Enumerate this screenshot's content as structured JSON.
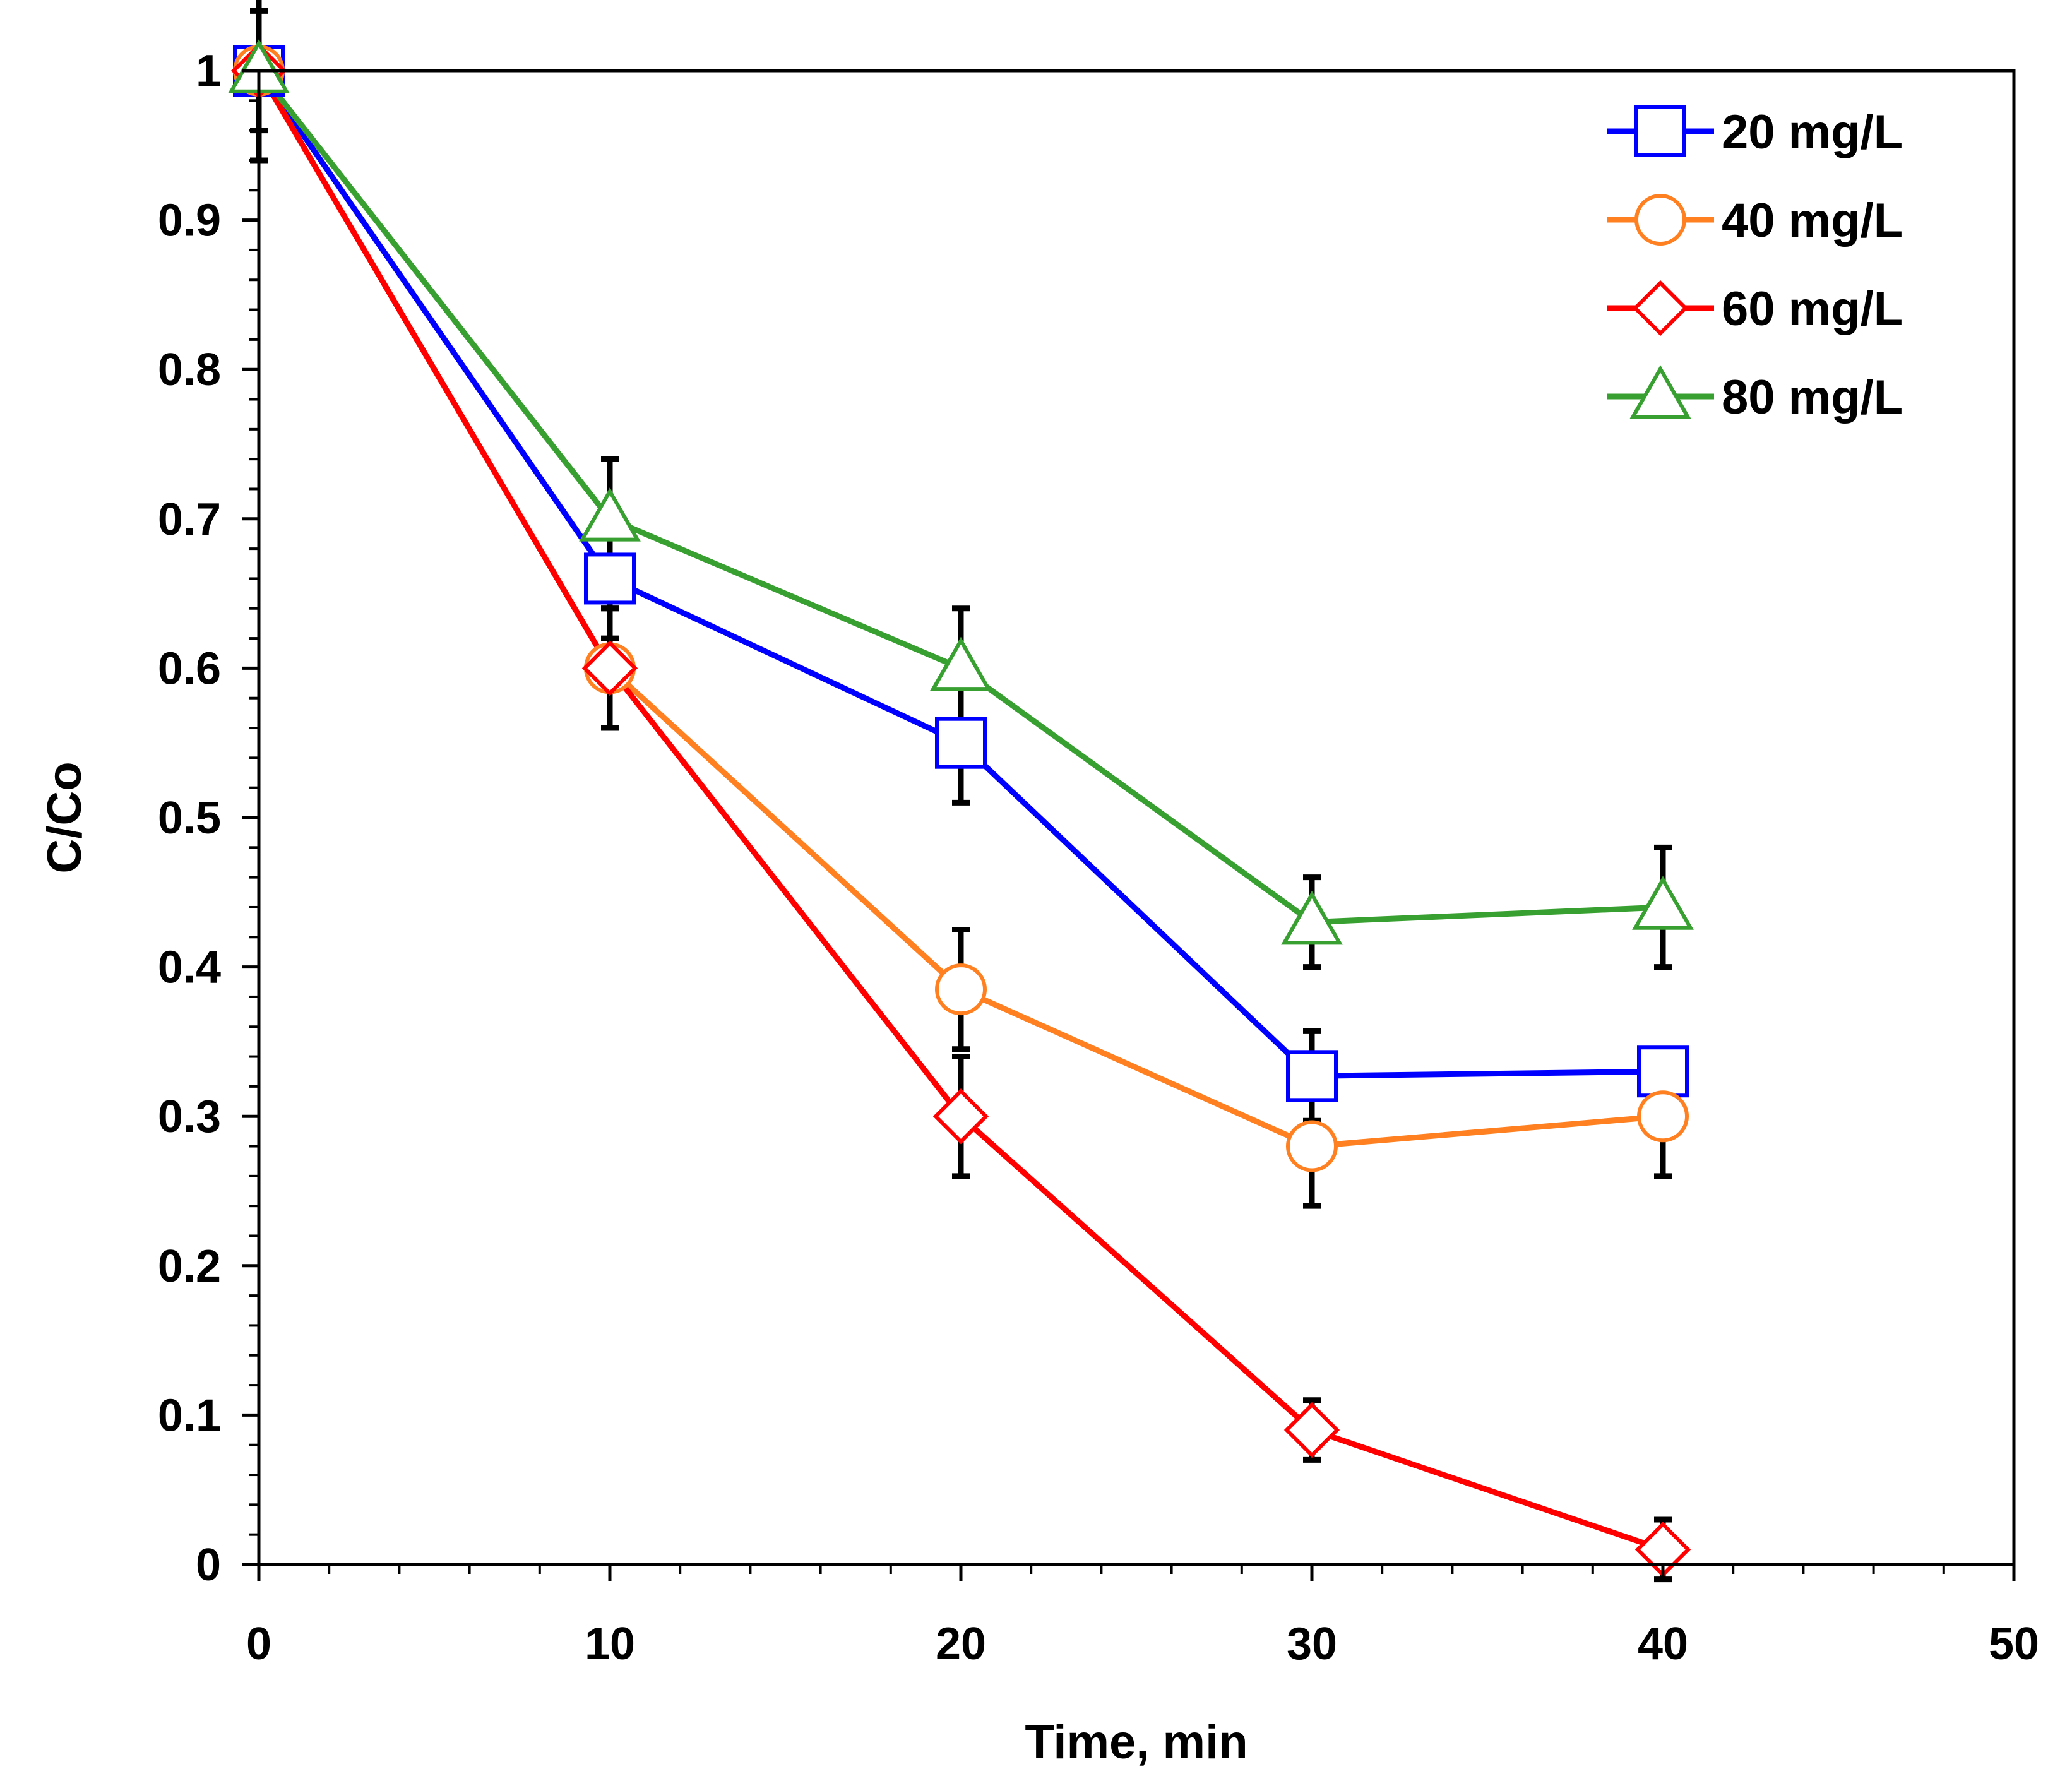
{
  "chart_data": {
    "type": "line",
    "title": "",
    "xlabel": "Time, min",
    "ylabel": "C/Co",
    "xlim": [
      0,
      50
    ],
    "ylim": [
      0,
      1
    ],
    "xticks": [
      "0",
      "10",
      "20",
      "30",
      "40",
      "50"
    ],
    "yticks": [
      "0",
      "0.1",
      "0.2",
      "0.3",
      "0.4",
      "0.5",
      "0.6",
      "0.7",
      "0.8",
      "0.9",
      "1"
    ],
    "x_tick_values": [
      0,
      10,
      20,
      30,
      40,
      50
    ],
    "y_tick_values": [
      0,
      0.1,
      0.2,
      0.3,
      0.4,
      0.5,
      0.6,
      0.7,
      0.8,
      0.9,
      1
    ],
    "x_minor_step": 2,
    "y_minor_step": 0.02,
    "legend_position": "top-right",
    "series": [
      {
        "name": "20 mg/L",
        "color": "#0000ff",
        "marker": "square",
        "x": [
          0,
          10,
          20,
          30,
          40
        ],
        "y": [
          1.0,
          0.66,
          0.55,
          0.327,
          0.33
        ],
        "error": [
          0.06,
          0.04,
          0.04,
          0.03,
          0.0
        ]
      },
      {
        "name": "40 mg/L",
        "color": "#ff8020",
        "marker": "circle",
        "x": [
          0,
          10,
          20,
          30,
          40
        ],
        "y": [
          1.0,
          0.6,
          0.385,
          0.28,
          0.3
        ],
        "error": [
          0.06,
          0.04,
          0.04,
          0.04,
          0.04
        ]
      },
      {
        "name": "60 mg/L",
        "color": "#ff0000",
        "marker": "diamond",
        "x": [
          0,
          10,
          20,
          30,
          40
        ],
        "y": [
          1.0,
          0.6,
          0.3,
          0.09,
          0.01
        ],
        "error": [
          0.04,
          0.04,
          0.04,
          0.02,
          0.02
        ]
      },
      {
        "name": "80 mg/L",
        "color": "#38a030",
        "marker": "triangle",
        "x": [
          0,
          10,
          20,
          30,
          40
        ],
        "y": [
          1.0,
          0.7,
          0.6,
          0.43,
          0.44
        ],
        "error": [
          0.06,
          0.04,
          0.04,
          0.03,
          0.04
        ]
      }
    ]
  }
}
